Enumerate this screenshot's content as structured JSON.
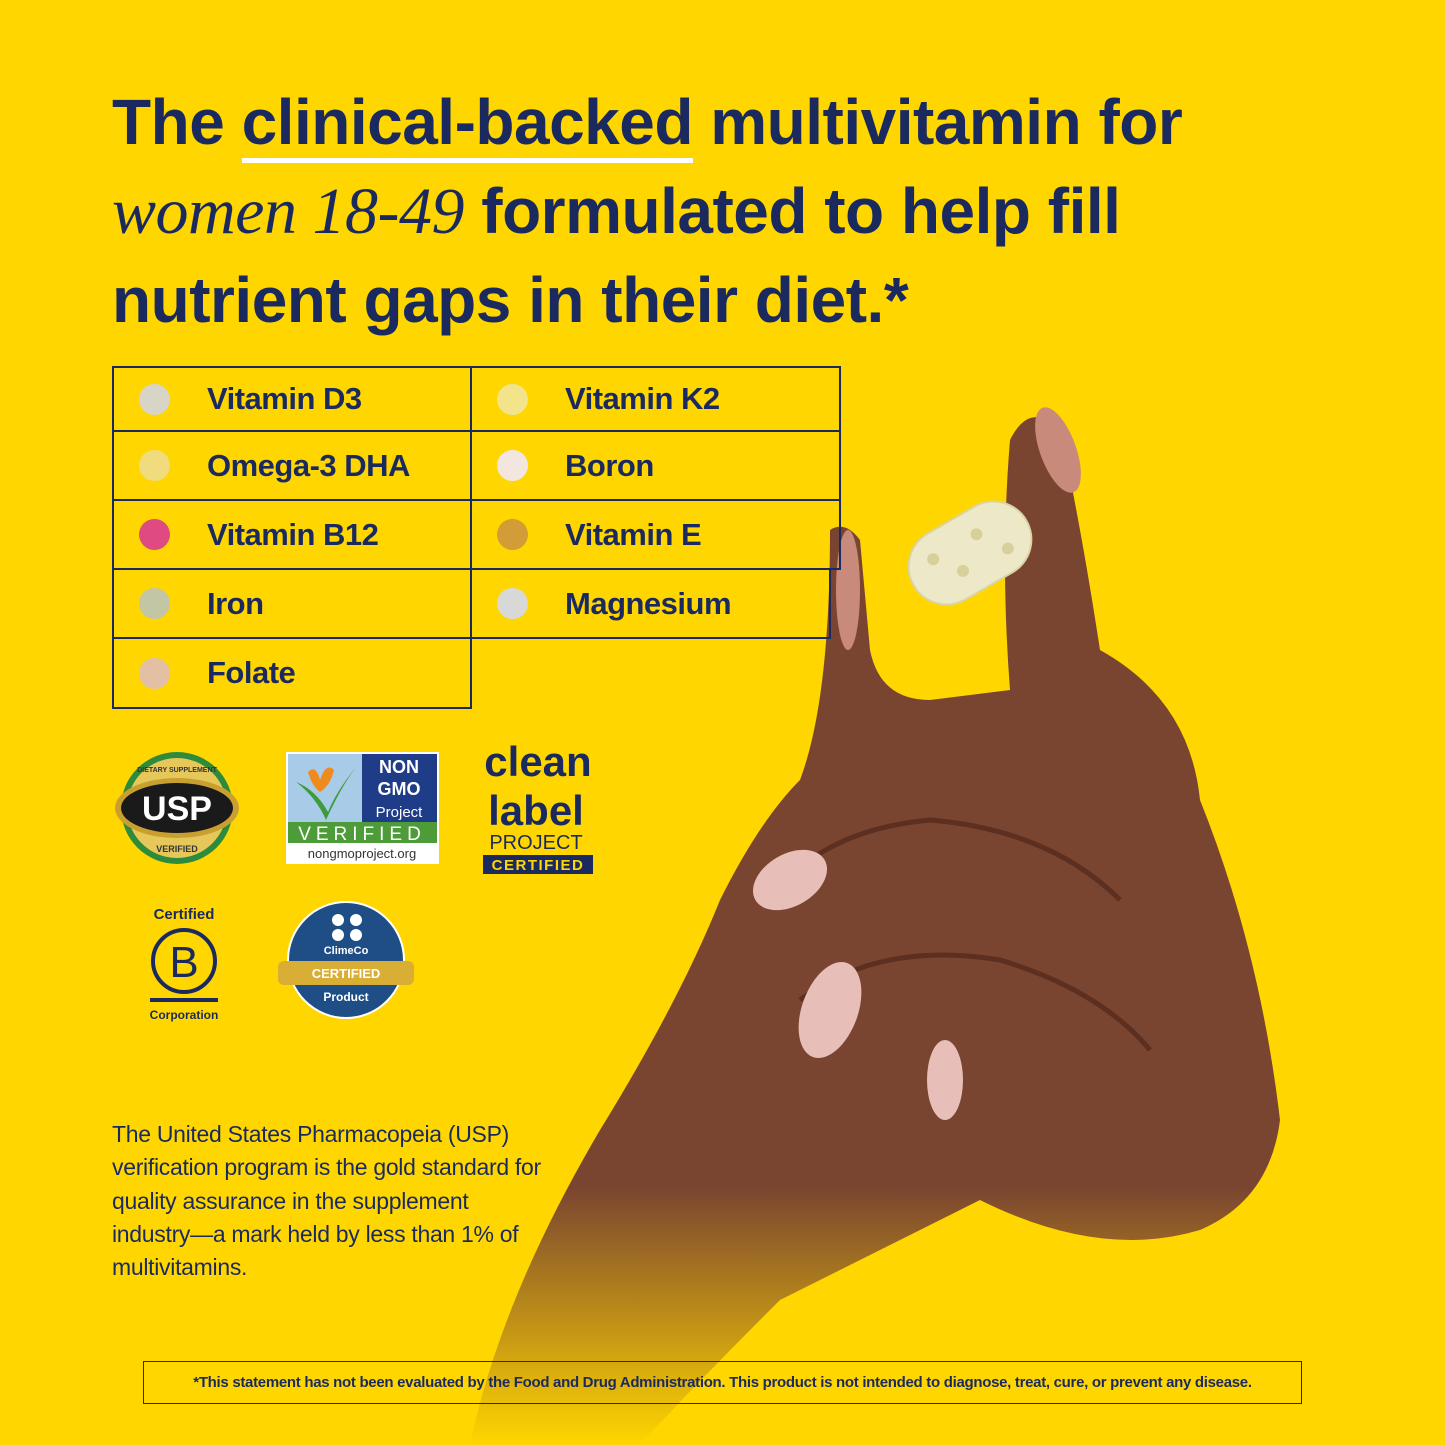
{
  "headline": {
    "part1": "The ",
    "underlined": "clinical-backed",
    "part2": " multivitamin for",
    "italic": "women 18-49",
    "part3": " formulated to help fill",
    "part4": "nutrient gaps in their diet.*"
  },
  "nutrients": [
    {
      "label": "Vitamin D3",
      "color": "#D9D4C8"
    },
    {
      "label": "Vitamin K2",
      "color": "#F3E38A"
    },
    {
      "label": "Omega-3 DHA",
      "color": "#F0DB7E"
    },
    {
      "label": "Boron",
      "color": "#F2E6DF"
    },
    {
      "label": "Vitamin B12",
      "color": "#DF4A82"
    },
    {
      "label": "Vitamin E",
      "color": "#D29D36"
    },
    {
      "label": "Iron",
      "color": "#C3C6A5"
    },
    {
      "label": "Magnesium",
      "color": "#D8D9D6"
    },
    {
      "label": "Folate",
      "color": "#E3C0A4"
    }
  ],
  "logos": {
    "usp": {
      "top": "DIETARY SUPPLEMENT",
      "main": "USP",
      "bottom": "VERIFIED"
    },
    "nongmo": {
      "l1": "NON",
      "l2": "GMO",
      "l3": "Project",
      "verified": "VERIFIED",
      "url": "nongmoproject.org"
    },
    "cleanlabel": {
      "l1": "clean",
      "l2": "label",
      "l3": "PROJECT",
      "l4": "CERTIFIED"
    },
    "bcorp": {
      "top": "Certified",
      "letter": "B",
      "bottom": "Corporation"
    },
    "climeco": {
      "name": "ClimeCo",
      "band": "CERTIFIED",
      "bottom": "Product"
    }
  },
  "paragraph": "The United States Pharmacopeia (USP) verification program is the gold standard for quality assurance in the supplement industry—a mark held by less than 1% of multivitamins.",
  "disclaimer": "*This statement has not been evaluated by the Food and Drug Administration. This product is not intended to diagnose, treat, cure, or prevent any disease.",
  "colors": {
    "background": "#FFD600",
    "navy": "#1B2A5E",
    "skin": "#7A4530"
  }
}
